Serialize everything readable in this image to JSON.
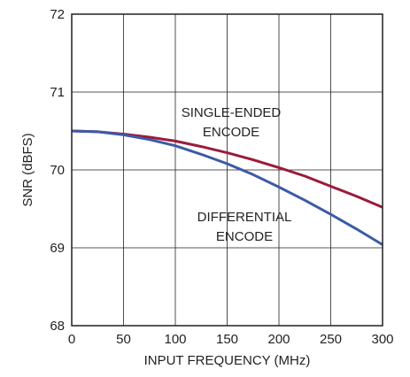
{
  "chart_data": {
    "type": "line",
    "xlabel": "INPUT FREQUENCY (MHz)",
    "ylabel": "SNR (dBFS)",
    "xlim": [
      0,
      300
    ],
    "ylim": [
      68,
      72
    ],
    "xticks": [
      0,
      50,
      100,
      150,
      200,
      250,
      300
    ],
    "yticks": [
      68,
      69,
      70,
      71,
      72
    ],
    "grid": true,
    "series": [
      {
        "name_lines": [
          "SINGLE-ENDED",
          "ENCODE"
        ],
        "color": "#9b1b3a",
        "x": [
          0,
          25,
          50,
          75,
          100,
          125,
          150,
          175,
          200,
          225,
          250,
          275,
          300
        ],
        "y": [
          70.5,
          70.49,
          70.46,
          70.42,
          70.37,
          70.3,
          70.22,
          70.13,
          70.03,
          69.92,
          69.79,
          69.66,
          69.52
        ]
      },
      {
        "name_lines": [
          "DIFFERENTIAL",
          "ENCODE"
        ],
        "color": "#3d5aa6",
        "x": [
          0,
          25,
          50,
          75,
          100,
          125,
          150,
          175,
          200,
          225,
          250,
          275,
          300
        ],
        "y": [
          70.5,
          70.49,
          70.45,
          70.39,
          70.31,
          70.2,
          70.08,
          69.94,
          69.78,
          69.61,
          69.43,
          69.24,
          69.04
        ]
      }
    ]
  }
}
